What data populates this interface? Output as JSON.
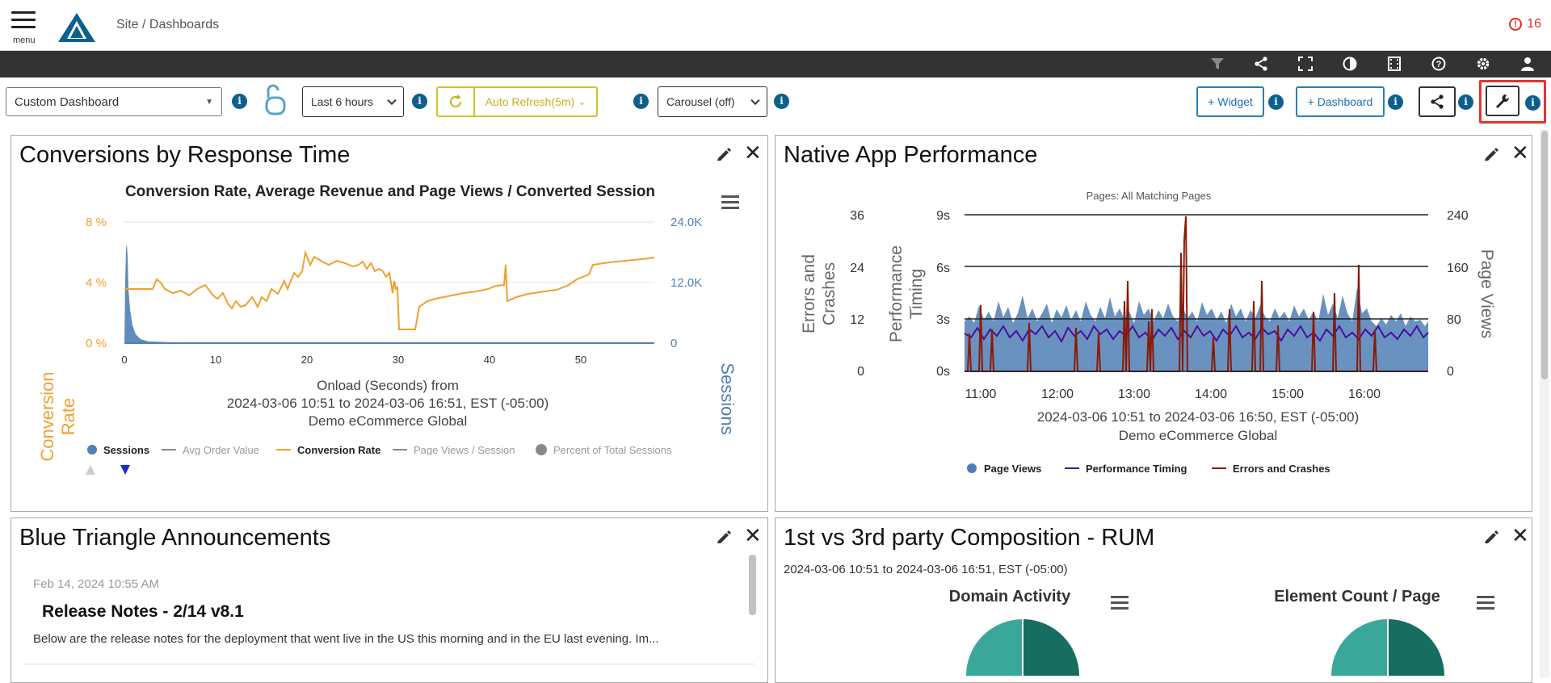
{
  "header": {
    "menu_label": "menu",
    "breadcrumb": "Site / Dashboards",
    "alert_icon": "!",
    "alert_count": "16"
  },
  "toolbar_icons": [
    "filter-icon",
    "share-icon",
    "fullscreen-icon",
    "contrast-icon",
    "film-icon",
    "help-icon",
    "gear-icon",
    "user-icon"
  ],
  "controls": {
    "dashboard_select": "Custom Dashboard",
    "time_range": "Last 6 hours",
    "auto_refresh": "Auto Refresh(5m)",
    "carousel": "Carousel (off)",
    "add_widget": "+ Widget",
    "add_dashboard": "+ Dashboard",
    "info": "i"
  },
  "panels": {
    "conversions": {
      "title": "Conversions by Response Time",
      "chart_title": "Conversion Rate, Average Revenue and Page Views / Converted Session",
      "y_left_label_1": "Conversion",
      "y_left_label_2": "Rate",
      "y_left_ticks": [
        "8 %",
        "4 %",
        "0 %"
      ],
      "y_right_label": "Sessions",
      "y_right_ticks": [
        "24.0K",
        "12.0K",
        "0"
      ],
      "x_ticks": [
        "0",
        "10",
        "20",
        "30",
        "40",
        "50"
      ],
      "subtitle_1": "Onload (Seconds) from",
      "subtitle_2": "2024-03-06 10:51 to 2024-03-06 16:51, EST (-05:00)",
      "subtitle_3": "Demo eCommerce Global",
      "legend": [
        "Sessions",
        "Avg Order Value",
        "Conversion Rate",
        "Page Views / Session",
        "Percent of Total Sessions"
      ]
    },
    "native": {
      "title": "Native App Performance",
      "chart_subtitle": "Pages: All Matching Pages",
      "y1_label_1": "Errors and",
      "y1_label_2": "Crashes",
      "y1_ticks": [
        "36",
        "24",
        "12",
        "0"
      ],
      "y2_label_1": "Performance",
      "y2_label_2": "Timing",
      "y2_ticks": [
        "9s",
        "6s",
        "3s",
        "0s"
      ],
      "y3_label": "Page Views",
      "y3_ticks": [
        "240",
        "160",
        "80",
        "0"
      ],
      "x_ticks": [
        "11:00",
        "12:00",
        "13:00",
        "14:00",
        "15:00",
        "16:00"
      ],
      "subtitle_1": "2024-03-06 10:51 to 2024-03-06 16:50, EST (-05:00)",
      "subtitle_2": "Demo eCommerce Global",
      "legend": [
        "Page Views",
        "Performance Timing",
        "Errors and Crashes"
      ]
    },
    "announcements": {
      "title": "Blue Triangle Announcements",
      "date": "Feb 14, 2024 10:55 AM",
      "heading": "Release Notes - 2/14 v8.1",
      "body": "Below are the release notes for the deployment that went live in the US this morning and in the EU last evening. Im..."
    },
    "composition": {
      "title": "1st vs 3rd party Composition - RUM",
      "date_range": "2024-03-06 10:51 to 2024-03-06 16:51, EST (-05:00)",
      "chart1_title": "Domain Activity",
      "chart2_title": "Element Count / Page"
    }
  },
  "colors": {
    "orange": "#f0a030",
    "steel_blue": "#4f7fb5",
    "purple": "#4b0fa0",
    "dark_red": "#8b1a05",
    "teal": "#3aa79a",
    "dark_teal": "#176d5f",
    "info_blue": "#0d5f8e",
    "highlight_red": "#e3342f"
  }
}
